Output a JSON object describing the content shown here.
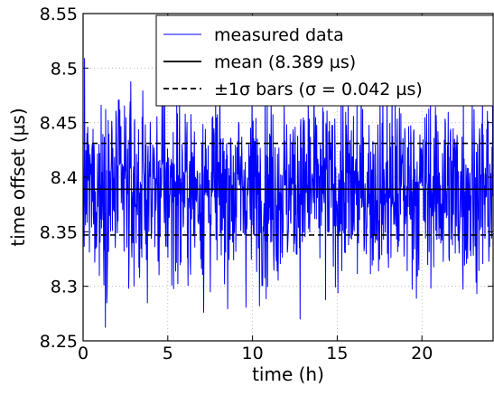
{
  "chart_data": {
    "type": "line",
    "xlabel": "time (h)",
    "ylabel": "time offset (µs)",
    "xlim": [
      0,
      24.2
    ],
    "ylim": [
      8.25,
      8.55
    ],
    "xticks": [
      0,
      5,
      10,
      15,
      20
    ],
    "xtick_labels": [
      "0",
      "5",
      "10",
      "15",
      "20"
    ],
    "yticks": [
      8.25,
      8.3,
      8.35,
      8.4,
      8.45,
      8.5,
      8.55
    ],
    "ytick_labels": [
      "8.25",
      "8.3",
      "8.35",
      "8.4",
      "8.45",
      "8.5",
      "8.55"
    ],
    "grid": true,
    "legend_position": "top-right",
    "series": [
      {
        "name": "measured data",
        "style": "solid",
        "color": "#0000ff",
        "values_description_mean": 8.389,
        "values_description_sigma": 0.042
      },
      {
        "name": "mean (8.389 µs)",
        "style": "solid",
        "color": "#000000",
        "y": 8.389
      },
      {
        "name": "±1σ bars (σ = 0.042 µs)",
        "style": "dashed",
        "color": "#000000",
        "y": [
          8.347,
          8.431
        ]
      }
    ]
  }
}
